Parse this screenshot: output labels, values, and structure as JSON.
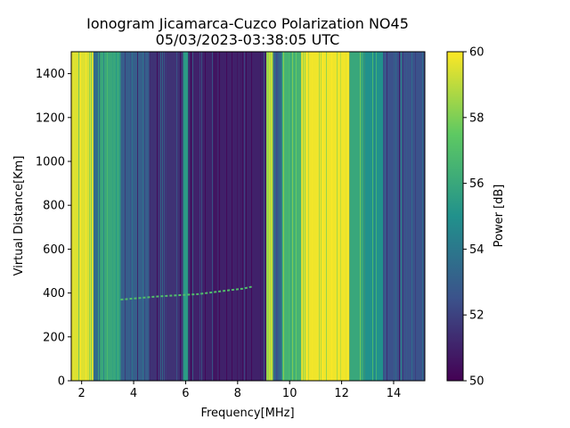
{
  "chart_data": {
    "type": "heatmap",
    "title": "Ionogram Jicamarca-Cuzco Polarization NO45",
    "subtitle": "05/03/2023-03:38:05 UTC",
    "xlabel": "Frequency[MHz]",
    "ylabel": "Virtual Distance[Km]",
    "colorbar_label": "Power [dB]",
    "colormap": "viridis",
    "xlim": [
      1.6,
      15.2
    ],
    "ylim": [
      0,
      1500
    ],
    "clim": [
      50,
      60
    ],
    "x_ticks": [
      2,
      4,
      6,
      8,
      10,
      12,
      14
    ],
    "y_ticks": [
      0,
      200,
      400,
      600,
      800,
      1000,
      1200,
      1400
    ],
    "colorbar_ticks": [
      50,
      52,
      54,
      56,
      58,
      60
    ],
    "grid": false,
    "bands": [
      {
        "x0": 1.6,
        "x1": 2.45,
        "level": 59.5
      },
      {
        "x0": 2.45,
        "x1": 2.7,
        "level": 53.5
      },
      {
        "x0": 2.7,
        "x1": 3.5,
        "level": 56.0
      },
      {
        "x0": 3.5,
        "x1": 4.6,
        "level": 53.0
      },
      {
        "x0": 4.6,
        "x1": 5.9,
        "level": 51.5
      },
      {
        "x0": 5.9,
        "x1": 6.1,
        "level": 55.5
      },
      {
        "x0": 6.1,
        "x1": 9.1,
        "level": 51.0
      },
      {
        "x0": 9.1,
        "x1": 9.35,
        "level": 58.5
      },
      {
        "x0": 9.35,
        "x1": 9.7,
        "level": 52.5
      },
      {
        "x0": 9.7,
        "x1": 10.45,
        "level": 56.5
      },
      {
        "x0": 10.45,
        "x1": 12.3,
        "level": 59.8
      },
      {
        "x0": 12.3,
        "x1": 12.9,
        "level": 56.0
      },
      {
        "x0": 12.9,
        "x1": 13.6,
        "level": 55.0
      },
      {
        "x0": 13.6,
        "x1": 15.2,
        "level": 52.5
      }
    ],
    "trace": {
      "x": [
        3.5,
        5.0,
        6.5,
        7.5,
        8.2,
        8.6
      ],
      "y": [
        370,
        385,
        395,
        410,
        420,
        430
      ],
      "level": 57
    }
  }
}
